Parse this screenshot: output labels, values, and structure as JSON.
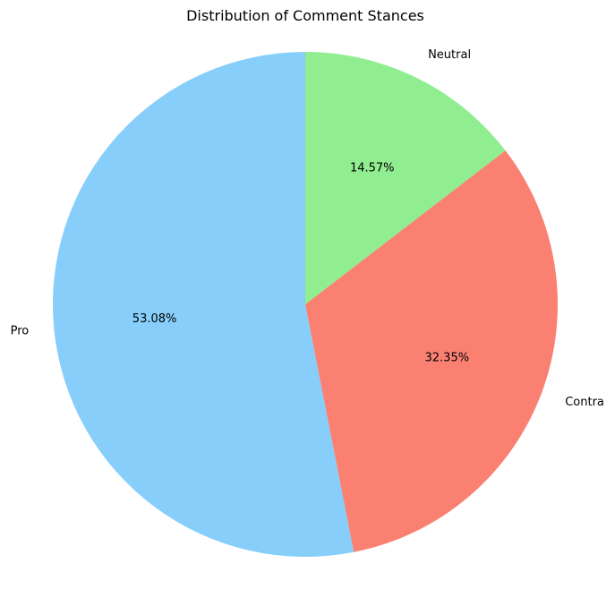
{
  "chart_data": {
    "type": "pie",
    "title": "Distribution of Comment Stances",
    "slices": [
      {
        "label": "Pro",
        "value": 53.08,
        "pct_label": "53.08%",
        "color": "#87CEFA"
      },
      {
        "label": "Contra",
        "value": 32.35,
        "pct_label": "32.35%",
        "color": "#FA8072"
      },
      {
        "label": "Neutral",
        "value": 14.57,
        "pct_label": "14.57%",
        "color": "#90EE90"
      }
    ],
    "start_angle_deg": 90,
    "direction": "counterclockwise"
  }
}
